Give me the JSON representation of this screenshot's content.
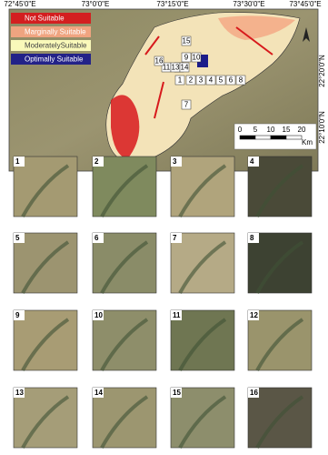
{
  "map": {
    "top_labels": [
      "72°45'0\"E",
      "73°0'0\"E",
      "73°15'0\"E",
      "73°30'0\"E",
      "73°45'0\"E"
    ],
    "right_labels": [
      "22°20'0\"N",
      "22°10'0\"N"
    ],
    "legend": [
      {
        "label": "Not Suitable",
        "color": "#d7191c"
      },
      {
        "label": "Marginally Suitable",
        "color": "#f4a582"
      },
      {
        "label": "ModeratelySuitable",
        "color": "#ffffbf"
      },
      {
        "label": "Optimally Suitable",
        "color": "#1c1c8a"
      }
    ],
    "scale": {
      "ticks": [
        "0",
        "5",
        "10",
        "15",
        "20"
      ],
      "unit": "Km"
    },
    "points": [
      "1",
      "2",
      "3",
      "4",
      "5",
      "6",
      "7",
      "8",
      "9",
      "10",
      "11",
      "12",
      "13",
      "14",
      "15",
      "16"
    ]
  },
  "tiles": [
    "1",
    "2",
    "3",
    "4",
    "5",
    "6",
    "7",
    "8",
    "9",
    "10",
    "11",
    "12",
    "13",
    "14",
    "15",
    "16"
  ]
}
